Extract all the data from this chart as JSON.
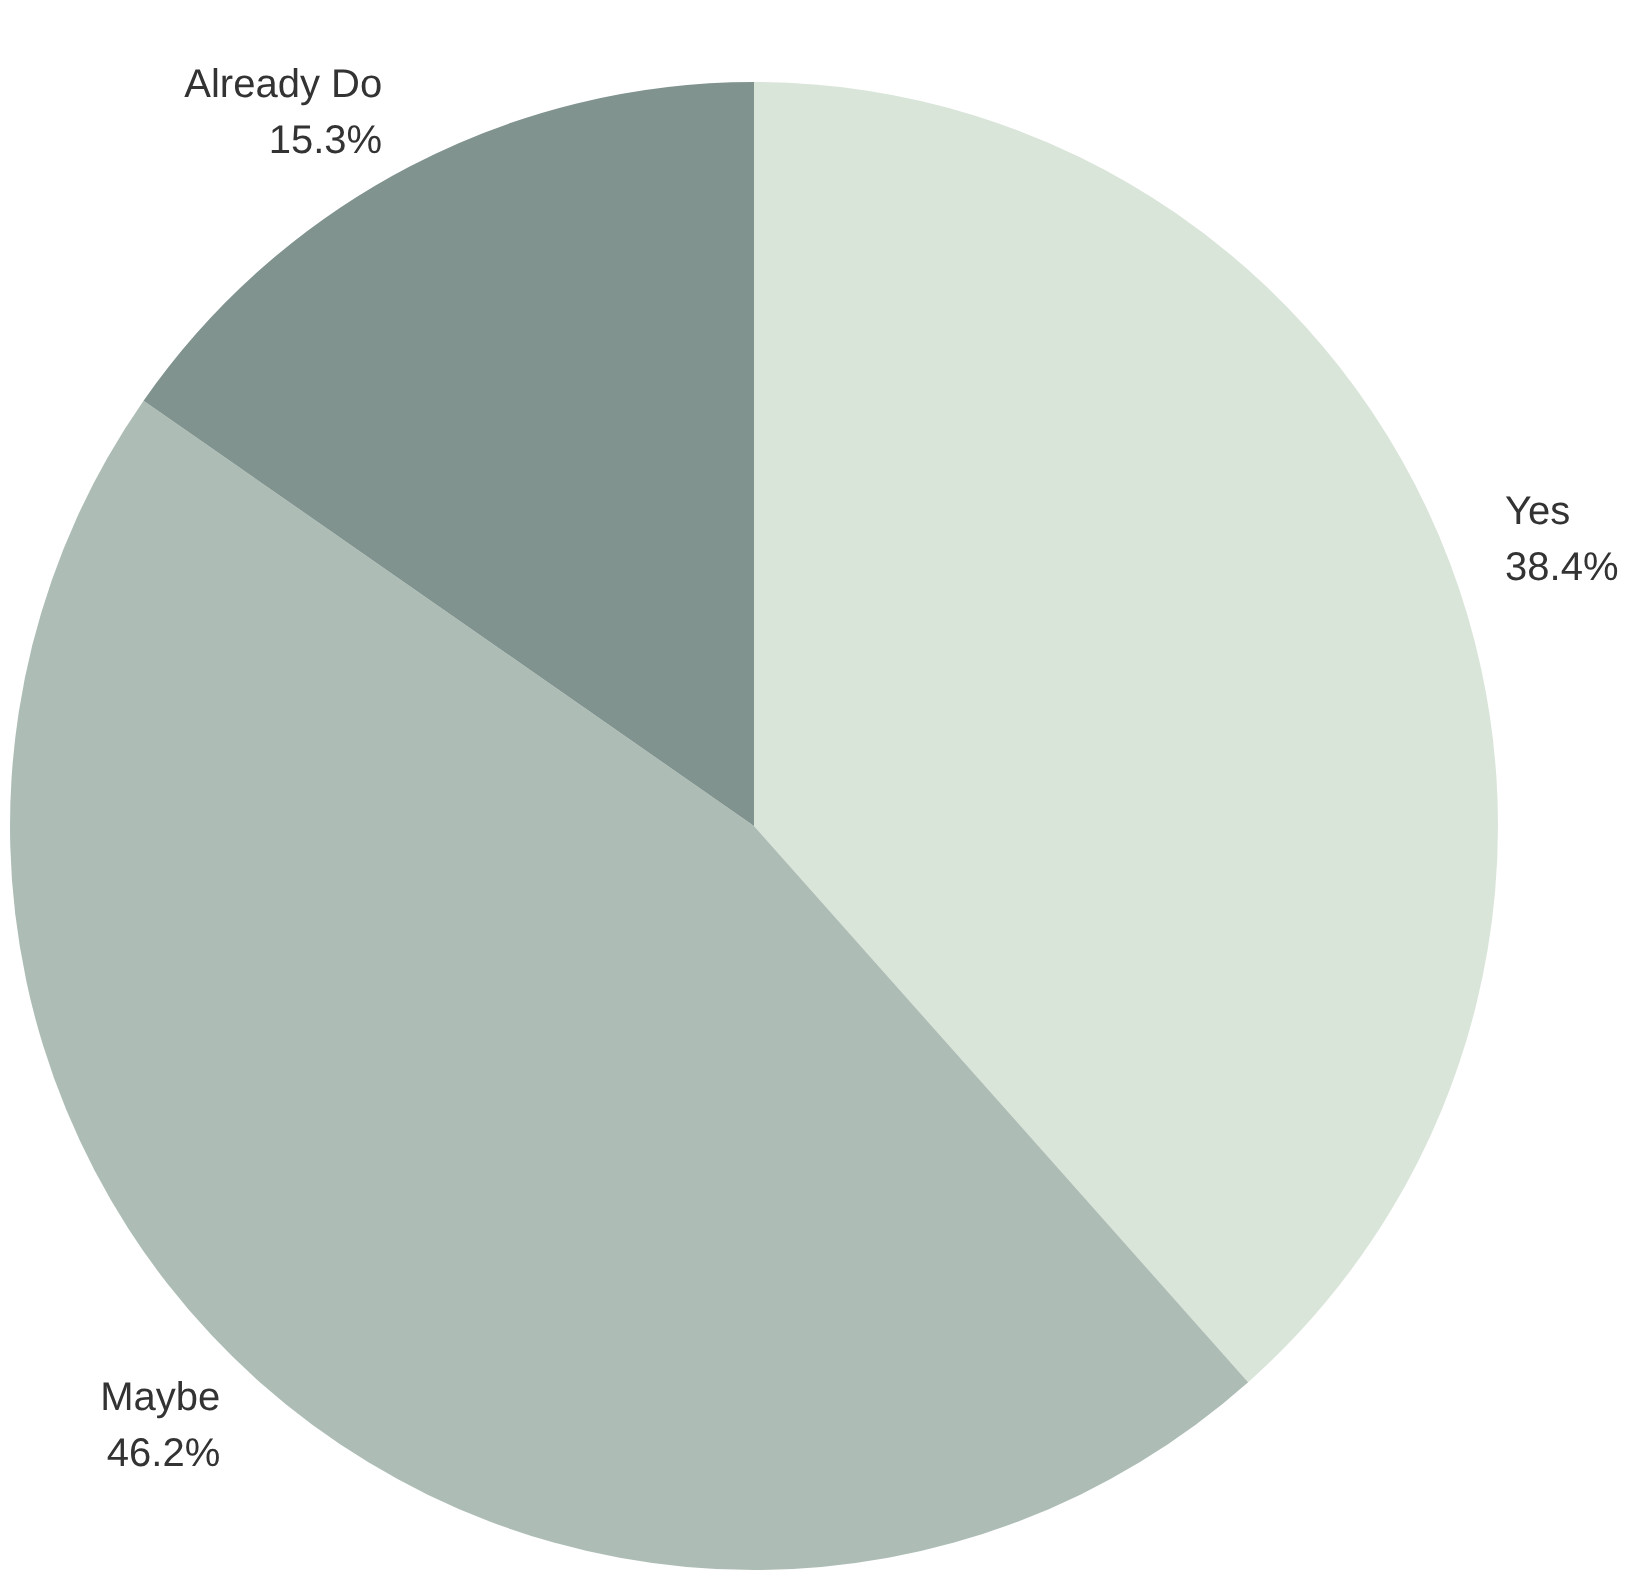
{
  "chart_data": {
    "type": "pie",
    "categories": [
      "Yes",
      "Maybe",
      "Already Do"
    ],
    "values": [
      38.4,
      46.2,
      15.3
    ],
    "value_labels": [
      "38.4%",
      "46.2%",
      "15.3%"
    ],
    "colors": [
      "#dae5da",
      "#adbdb5",
      "#80938f"
    ],
    "legend": false
  }
}
